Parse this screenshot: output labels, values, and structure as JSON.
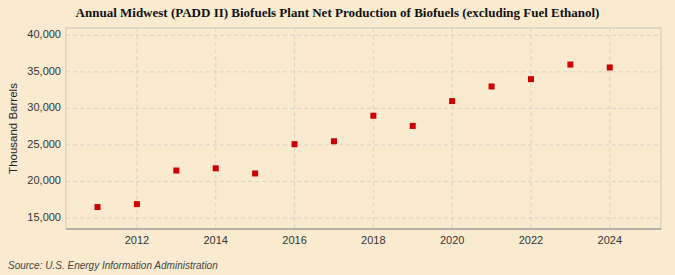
{
  "chart_data": {
    "type": "scatter",
    "title": "Annual Midwest (PADD II) Biofuels Plant Net Production of Biofuels (excluding Fuel Ethanol)",
    "ylabel": "Thousand Barrels",
    "annotation": "Source: U.S. Energy Information Administration",
    "x": [
      2011,
      2012,
      2013,
      2014,
      2015,
      2016,
      2017,
      2018,
      2019,
      2020,
      2021,
      2022,
      2023,
      2024
    ],
    "values": [
      16500,
      16900,
      21500,
      21800,
      21100,
      25100,
      25500,
      29000,
      27600,
      31000,
      33000,
      34000,
      36000,
      35600
    ],
    "color": "#cc0000",
    "marker": "square",
    "grid": true,
    "xlim": [
      2010.2,
      2025.3
    ],
    "xticks": [
      2012,
      2014,
      2016,
      2018,
      2020,
      2022,
      2024
    ],
    "ylim": [
      13500,
      41000
    ],
    "yticks": [
      {
        "value": 15000,
        "label": "15,000"
      },
      {
        "value": 20000,
        "label": "20,000"
      },
      {
        "value": 25000,
        "label": "25,000"
      },
      {
        "value": 30000,
        "label": "30,000"
      },
      {
        "value": 35000,
        "label": "35,000"
      },
      {
        "value": 40000,
        "label": "40,000"
      }
    ]
  }
}
